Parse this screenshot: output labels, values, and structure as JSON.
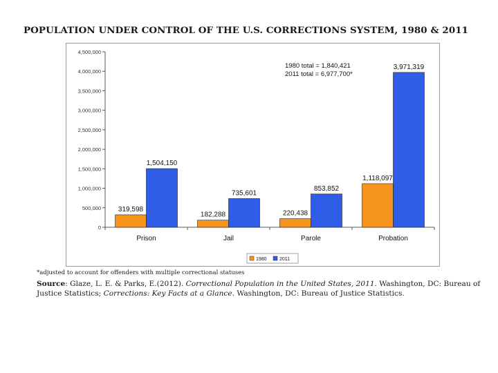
{
  "slide": {
    "title": "POPULATION UNDER CONTROL OF THE U.S. CORRECTIONS SYSTEM, 1980 & 2011",
    "footnote": "*adjusted to account for offenders with multiple correctional statuses",
    "source_label": "Source",
    "source_part1": ": Glaze, L. E. & Parks, E.(2012). ",
    "source_title1": "Correctional Population in the United States, 2011",
    "source_part2": ". Washington, DC: Bureau of Justice Statistics; ",
    "source_title2": "Corrections: Key Facts at a Glance",
    "source_part3": ". Washington, DC: Bureau of Justice Statistics."
  },
  "chart_data": {
    "type": "bar",
    "title": "POPULATION UNDER CONTROL OF THE U.S. CORRECTIONS SYSTEM, 1980 & 2011",
    "categories": [
      "Prison",
      "Jail",
      "Parole",
      "Probation"
    ],
    "series": [
      {
        "name": "1980",
        "color": "#f7941d",
        "values": [
          319598,
          182288,
          220438,
          1118097
        ],
        "labels": [
          "319,598",
          "182,288",
          "220,438",
          "1,118,097"
        ]
      },
      {
        "name": "2011",
        "color": "#2f5de8",
        "values": [
          1504150,
          735601,
          853852,
          3971319
        ],
        "labels": [
          "1,504,150",
          "735,601",
          "853,852",
          "3,971,319"
        ]
      }
    ],
    "ylim": [
      0,
      4500000
    ],
    "yticks": [
      0,
      500000,
      1000000,
      1500000,
      2000000,
      2500000,
      3000000,
      3500000,
      4000000,
      4500000
    ],
    "ytick_labels": [
      "0",
      "500,000",
      "1,000,000",
      "1,500,000",
      "2,000,000",
      "2,500,000",
      "3,000,000",
      "3,500,000",
      "4,000,000",
      "4,500,000"
    ],
    "xlabel": "",
    "ylabel": "",
    "grid": false,
    "annotations": [
      "1980 total = 1,840,421",
      "2011 total = 6,977,700*"
    ],
    "legend": "bottom-right"
  }
}
